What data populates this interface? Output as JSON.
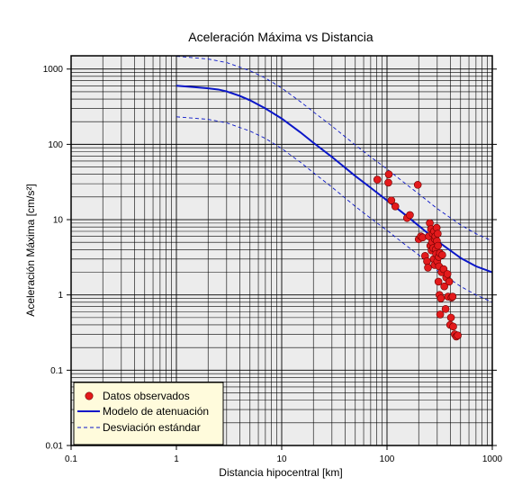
{
  "chart_data": {
    "type": "scatter",
    "title": "Aceleración Máxima vs Distancia",
    "xlabel": "Distancia hipocentral [km]",
    "ylabel": "Aceleración Máxima [cm/s²]",
    "xscale": "log",
    "yscale": "log",
    "xlim": [
      0.1,
      1000
    ],
    "ylim": [
      0.01,
      1500
    ],
    "grid": true,
    "legend_position": "bottom-left",
    "x_ticks": [
      {
        "value": 0.1,
        "label": "0.1"
      },
      {
        "value": 1,
        "label": "1"
      },
      {
        "value": 10,
        "label": "10"
      },
      {
        "value": 100,
        "label": "100"
      },
      {
        "value": 1000,
        "label": "1000"
      }
    ],
    "y_ticks": [
      {
        "value": 0.01,
        "label": "0.01"
      },
      {
        "value": 0.1,
        "label": "0.1"
      },
      {
        "value": 1,
        "label": "1"
      },
      {
        "value": 10,
        "label": "10"
      },
      {
        "value": 100,
        "label": "100"
      },
      {
        "value": 1000,
        "label": "1000"
      }
    ],
    "series": [
      {
        "name": "Datos observados",
        "kind": "points",
        "color": "#e31a1c",
        "points": [
          [
            81,
            34
          ],
          [
            104,
            40
          ],
          [
            103,
            31
          ],
          [
            110,
            18
          ],
          [
            120,
            15
          ],
          [
            155,
            10.5
          ],
          [
            165,
            11.5
          ],
          [
            196,
            29
          ],
          [
            200,
            5.5
          ],
          [
            210,
            6
          ],
          [
            218,
            5.8
          ],
          [
            230,
            3.3
          ],
          [
            240,
            2.8
          ],
          [
            245,
            2.3
          ],
          [
            250,
            6
          ],
          [
            255,
            9
          ],
          [
            258,
            4.5
          ],
          [
            262,
            7.5
          ],
          [
            265,
            3.9
          ],
          [
            268,
            5
          ],
          [
            272,
            6.5
          ],
          [
            275,
            4.2
          ],
          [
            278,
            3
          ],
          [
            280,
            7
          ],
          [
            283,
            2.5
          ],
          [
            285,
            5.5
          ],
          [
            288,
            6
          ],
          [
            290,
            4
          ],
          [
            293,
            3.5
          ],
          [
            296,
            7.8
          ],
          [
            298,
            5.2
          ],
          [
            300,
            2.8
          ],
          [
            303,
            6.5
          ],
          [
            305,
            4.5
          ],
          [
            308,
            1.5
          ],
          [
            310,
            3.2
          ],
          [
            312,
            2.4
          ],
          [
            315,
            1
          ],
          [
            318,
            3.6
          ],
          [
            320,
            0.55
          ],
          [
            325,
            0.9
          ],
          [
            330,
            2
          ],
          [
            335,
            3.4
          ],
          [
            345,
            2.2
          ],
          [
            350,
            1.3
          ],
          [
            360,
            0.65
          ],
          [
            365,
            1.7
          ],
          [
            375,
            1.9
          ],
          [
            380,
            0.95
          ],
          [
            390,
            1.5
          ],
          [
            398,
            0.4
          ],
          [
            405,
            0.5
          ],
          [
            410,
            0.92
          ],
          [
            420,
            0.95
          ],
          [
            425,
            0.38
          ],
          [
            440,
            0.3
          ],
          [
            455,
            0.28
          ],
          [
            470,
            0.29
          ]
        ]
      },
      {
        "name": "Modelo de atenuación",
        "kind": "line",
        "color": "#0a16c8",
        "dash": "solid",
        "points": [
          [
            1,
            600
          ],
          [
            1.5,
            575
          ],
          [
            2,
            555
          ],
          [
            2.5,
            535
          ],
          [
            3,
            505
          ],
          [
            4,
            440
          ],
          [
            5,
            385
          ],
          [
            7,
            300
          ],
          [
            10,
            220
          ],
          [
            15,
            145
          ],
          [
            20,
            105
          ],
          [
            30,
            68
          ],
          [
            50,
            38
          ],
          [
            70,
            26.5
          ],
          [
            100,
            18
          ],
          [
            150,
            11.5
          ],
          [
            200,
            8.3
          ],
          [
            300,
            5.2
          ],
          [
            500,
            3.1
          ],
          [
            700,
            2.4
          ],
          [
            1000,
            2.0
          ]
        ]
      },
      {
        "name": "Desviación estándar",
        "kind": "line",
        "color": "#0a16c8",
        "dash": "dashed",
        "points": [
          [
            1,
            1480
          ],
          [
            2,
            1360
          ],
          [
            3,
            1220
          ],
          [
            5,
            950
          ],
          [
            7,
            760
          ],
          [
            10,
            560
          ],
          [
            15,
            370
          ],
          [
            20,
            270
          ],
          [
            30,
            175
          ],
          [
            50,
            98
          ],
          [
            70,
            68
          ],
          [
            100,
            47
          ],
          [
            150,
            30
          ],
          [
            200,
            22
          ],
          [
            300,
            14
          ],
          [
            500,
            8.5
          ],
          [
            700,
            6.5
          ],
          [
            1000,
            5.2
          ]
        ]
      },
      {
        "name": "",
        "kind": "line",
        "color": "#0a16c8",
        "dash": "dashed",
        "legend": false,
        "points": [
          [
            1,
            232
          ],
          [
            2,
            215
          ],
          [
            3,
            193
          ],
          [
            5,
            150
          ],
          [
            7,
            120
          ],
          [
            10,
            88
          ],
          [
            15,
            58
          ],
          [
            20,
            42
          ],
          [
            30,
            27
          ],
          [
            50,
            15
          ],
          [
            70,
            10.4
          ],
          [
            100,
            7.2
          ],
          [
            150,
            4.6
          ],
          [
            200,
            3.4
          ],
          [
            300,
            2.1
          ],
          [
            500,
            1.3
          ],
          [
            700,
            1.0
          ],
          [
            1000,
            0.8
          ]
        ]
      }
    ]
  }
}
